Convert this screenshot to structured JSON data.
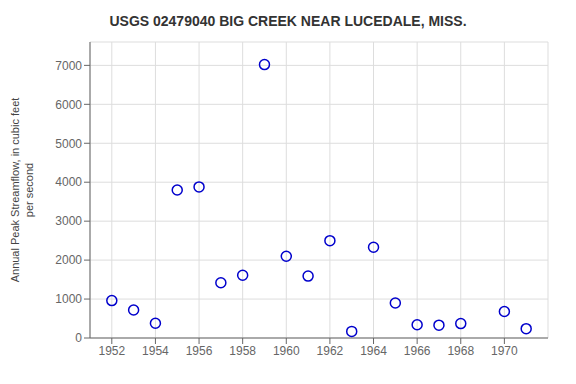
{
  "chart_data": {
    "type": "scatter",
    "title": "USGS 02479040 BIG CREEK NEAR LUCEDALE, MISS.",
    "ylabel": "Annual Peak Streamflow, in cubic feet\nper second",
    "x": [
      1952,
      1953,
      1954,
      1955,
      1956,
      1957,
      1958,
      1959,
      1960,
      1961,
      1962,
      1963,
      1964,
      1965,
      1966,
      1967,
      1968,
      1970,
      1971
    ],
    "values": [
      960,
      720,
      380,
      3800,
      3880,
      1420,
      1610,
      7020,
      2100,
      1590,
      2500,
      170,
      2330,
      900,
      340,
      330,
      370,
      680,
      240
    ],
    "color": "#0000cc",
    "marker": "circle",
    "xlim": [
      1951,
      1972
    ],
    "ylim": [
      0,
      7600
    ],
    "xticks": [
      1952,
      1954,
      1956,
      1958,
      1960,
      1962,
      1964,
      1966,
      1968,
      1970
    ],
    "yticks": [
      0,
      1000,
      2000,
      3000,
      4000,
      5000,
      6000,
      7000
    ],
    "grid": true
  }
}
